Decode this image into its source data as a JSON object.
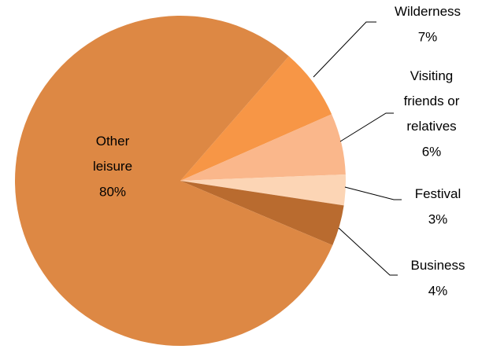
{
  "chart_data": {
    "type": "pie",
    "categories": [
      "Wilderness",
      "Visiting friends or relatives",
      "Festival",
      "Business",
      "Other leisure"
    ],
    "values": [
      7,
      6,
      3,
      4,
      80
    ],
    "value_labels": [
      "7%",
      "6%",
      "3%",
      "4%",
      "80%"
    ],
    "colors": [
      "#f79646",
      "#fab78b",
      "#fcd5b5",
      "#b96b2f",
      "#dd8844"
    ]
  }
}
